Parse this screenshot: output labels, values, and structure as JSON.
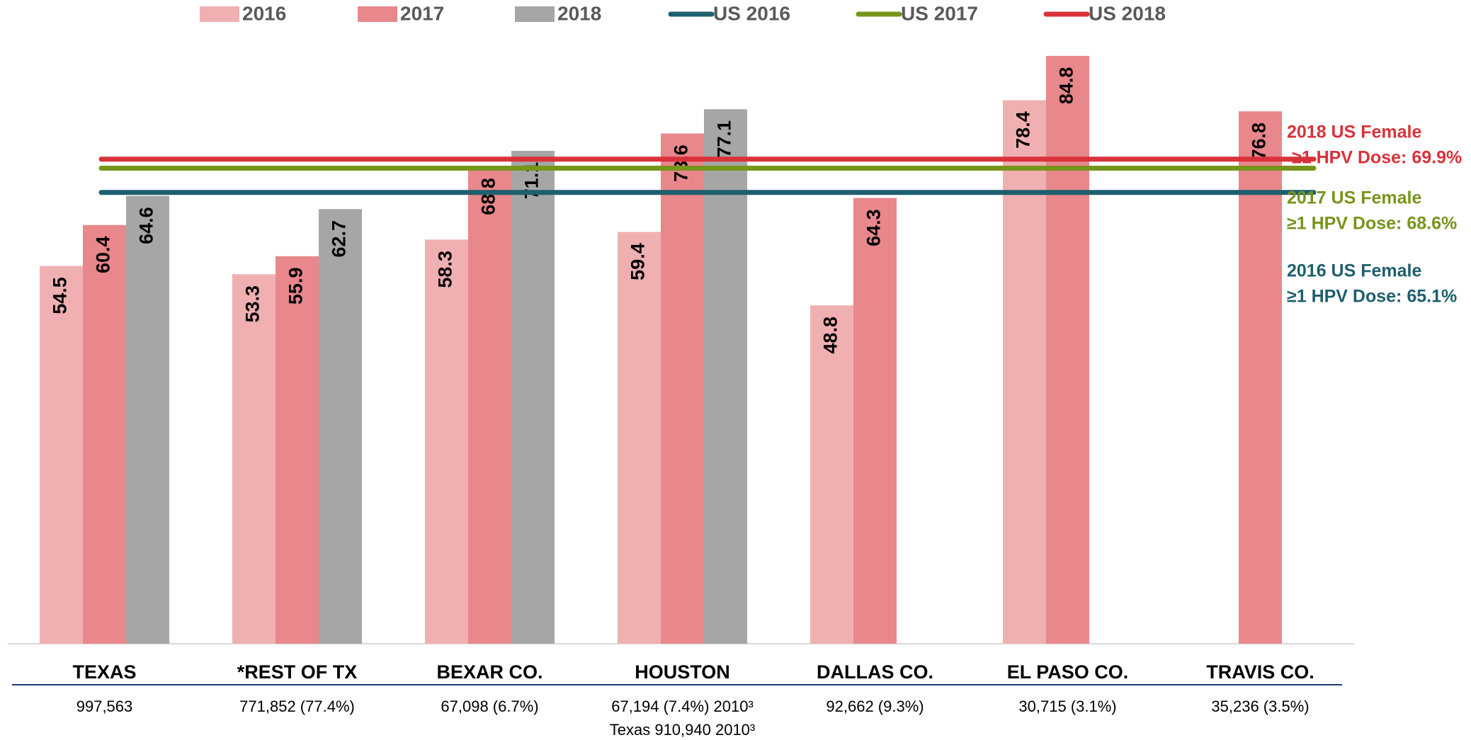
{
  "chart_data": {
    "type": "bar",
    "categories": [
      "TEXAS",
      "*REST OF TX",
      "BEXAR CO.",
      "HOUSTON",
      "DALLAS CO.",
      "EL PASO CO.",
      "TRAVIS CO."
    ],
    "category_notes": [
      [
        "997,563"
      ],
      [
        "771,852 (77.4%)"
      ],
      [
        "67,098 (6.7%)"
      ],
      [
        "67,194 (7.4%) 2010³",
        "Texas 910,940  2010³"
      ],
      [
        "92,662 (9.3%)"
      ],
      [
        "30,715 (3.1%)"
      ],
      [
        "35,236 (3.5%)"
      ]
    ],
    "series": [
      {
        "name": "2016",
        "color": "#f0b0b2",
        "values": [
          54.5,
          53.3,
          58.3,
          59.4,
          48.8,
          78.4,
          null
        ]
      },
      {
        "name": "2017",
        "color": "#e8878c",
        "values": [
          60.4,
          55.9,
          68.8,
          73.6,
          64.3,
          84.8,
          76.8
        ]
      },
      {
        "name": "2018",
        "color": "#a6a6a6",
        "values": [
          64.6,
          62.7,
          71.1,
          77.1,
          null,
          null,
          null
        ]
      }
    ],
    "reference_lines": [
      {
        "name": "US 2016",
        "color": "#1e5f6e",
        "value": 65.1
      },
      {
        "name": "US 2017",
        "color": "#76951b",
        "value": 68.6
      },
      {
        "name": "US 2018",
        "color": "#d9323a",
        "value": 69.9
      }
    ],
    "annotations": [
      {
        "line": 2,
        "lines": [
          "2018 US  Female",
          "≥1 HPV Dose: 69.9%"
        ]
      },
      {
        "line": 1,
        "lines": [
          "2017 US  Female",
          "≥1 HPV Dose: 68.6%"
        ]
      },
      {
        "line": 0,
        "lines": [
          "2016 US  Female",
          "≥1 HPV Dose: 65.1%"
        ]
      }
    ],
    "ylim": [
      0,
      90
    ],
    "legend": "top"
  }
}
